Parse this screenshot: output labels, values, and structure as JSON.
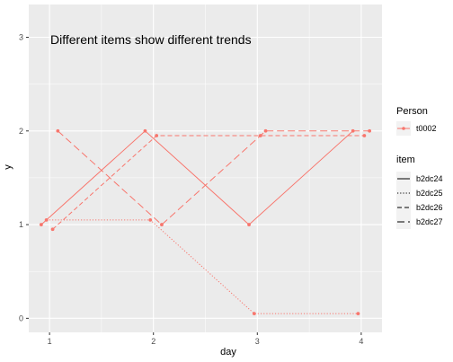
{
  "chart_data": {
    "type": "line",
    "title": "",
    "xlabel": "day",
    "ylabel": "y",
    "xlim": [
      0.8,
      4.2
    ],
    "ylim": [
      -0.15,
      3.35
    ],
    "x_ticks": [
      1,
      2,
      3,
      4
    ],
    "y_ticks": [
      0,
      1,
      2,
      3
    ],
    "x_tick_labels": [
      "1",
      "2",
      "3",
      "4"
    ],
    "y_tick_labels": [
      "0",
      "1",
      "2",
      "3"
    ],
    "grid": true,
    "annotation": "Different items show different trends",
    "color": "#F8766D",
    "legend_position": "right",
    "legend": {
      "person_title": "Person",
      "person_entries": [
        "t0002"
      ],
      "item_title": "item",
      "item_entries": [
        "b2dc24",
        "b2dc25",
        "b2dc26",
        "b2dc27"
      ]
    },
    "series": [
      {
        "name": "b2dc24",
        "x": [
          0.92,
          1.92,
          2.92,
          3.92
        ],
        "y": [
          1,
          2,
          1,
          2
        ],
        "dash": "none"
      },
      {
        "name": "b2dc25",
        "x": [
          0.97,
          1.97,
          2.97,
          3.97
        ],
        "y": [
          1.05,
          1.05,
          0.05,
          0.05
        ],
        "dash": "1.2,2"
      },
      {
        "name": "b2dc26",
        "x": [
          1.03,
          2.03,
          3.03,
          4.03
        ],
        "y": [
          0.95,
          1.95,
          1.95,
          1.95
        ],
        "dash": "5,3"
      },
      {
        "name": "b2dc27",
        "x": [
          1.08,
          2.08,
          3.08,
          4.08
        ],
        "y": [
          2,
          1,
          2,
          2
        ],
        "dash": "8,4"
      }
    ]
  }
}
